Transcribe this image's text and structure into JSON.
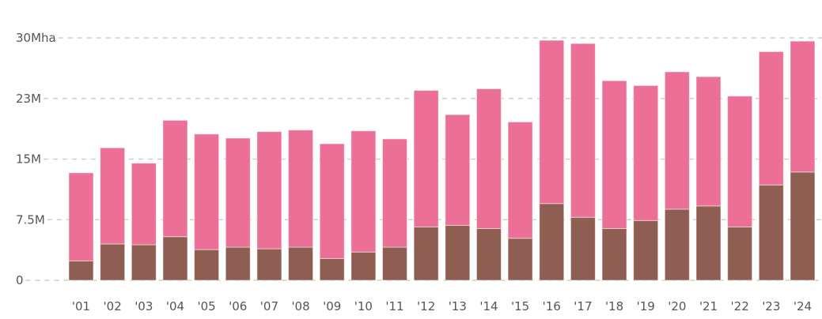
{
  "chart_data": {
    "type": "bar",
    "stacked": true,
    "categories": [
      "'01",
      "'02",
      "'03",
      "'04",
      "'05",
      "'06",
      "'07",
      "'08",
      "'09",
      "'10",
      "'11",
      "'12",
      "'13",
      "'14",
      "'15",
      "'16",
      "'17",
      "'18",
      "'19",
      "'20",
      "'21",
      "'22",
      "'23",
      "'24"
    ],
    "series": [
      {
        "color": "#8e5e52",
        "values": [
          2.4,
          4.5,
          4.4,
          5.4,
          3.8,
          4.1,
          3.9,
          4.1,
          2.7,
          3.5,
          4.1,
          6.6,
          6.8,
          6.4,
          5.2,
          9.5,
          7.8,
          6.4,
          7.4,
          8.8,
          9.2,
          6.6,
          11.8,
          13.4
        ]
      },
      {
        "color": "#ec7096",
        "values": [
          10.9,
          11.9,
          10.1,
          14.4,
          14.3,
          13.5,
          14.5,
          14.5,
          14.2,
          15.0,
          13.4,
          16.9,
          13.7,
          17.3,
          14.4,
          20.2,
          21.5,
          18.3,
          16.7,
          17.0,
          16.0,
          16.2,
          16.5,
          16.2
        ]
      }
    ],
    "yticks": [
      {
        "value": 0,
        "label": "0"
      },
      {
        "value": 7.5,
        "label": "7.5M"
      },
      {
        "value": 15,
        "label": "15M"
      },
      {
        "value": 22.5,
        "label": "23M"
      },
      {
        "value": 30,
        "label": "30Mha"
      }
    ],
    "ylim": [
      0,
      30
    ],
    "grid": true,
    "title": "",
    "xlabel": "",
    "ylabel": ""
  }
}
